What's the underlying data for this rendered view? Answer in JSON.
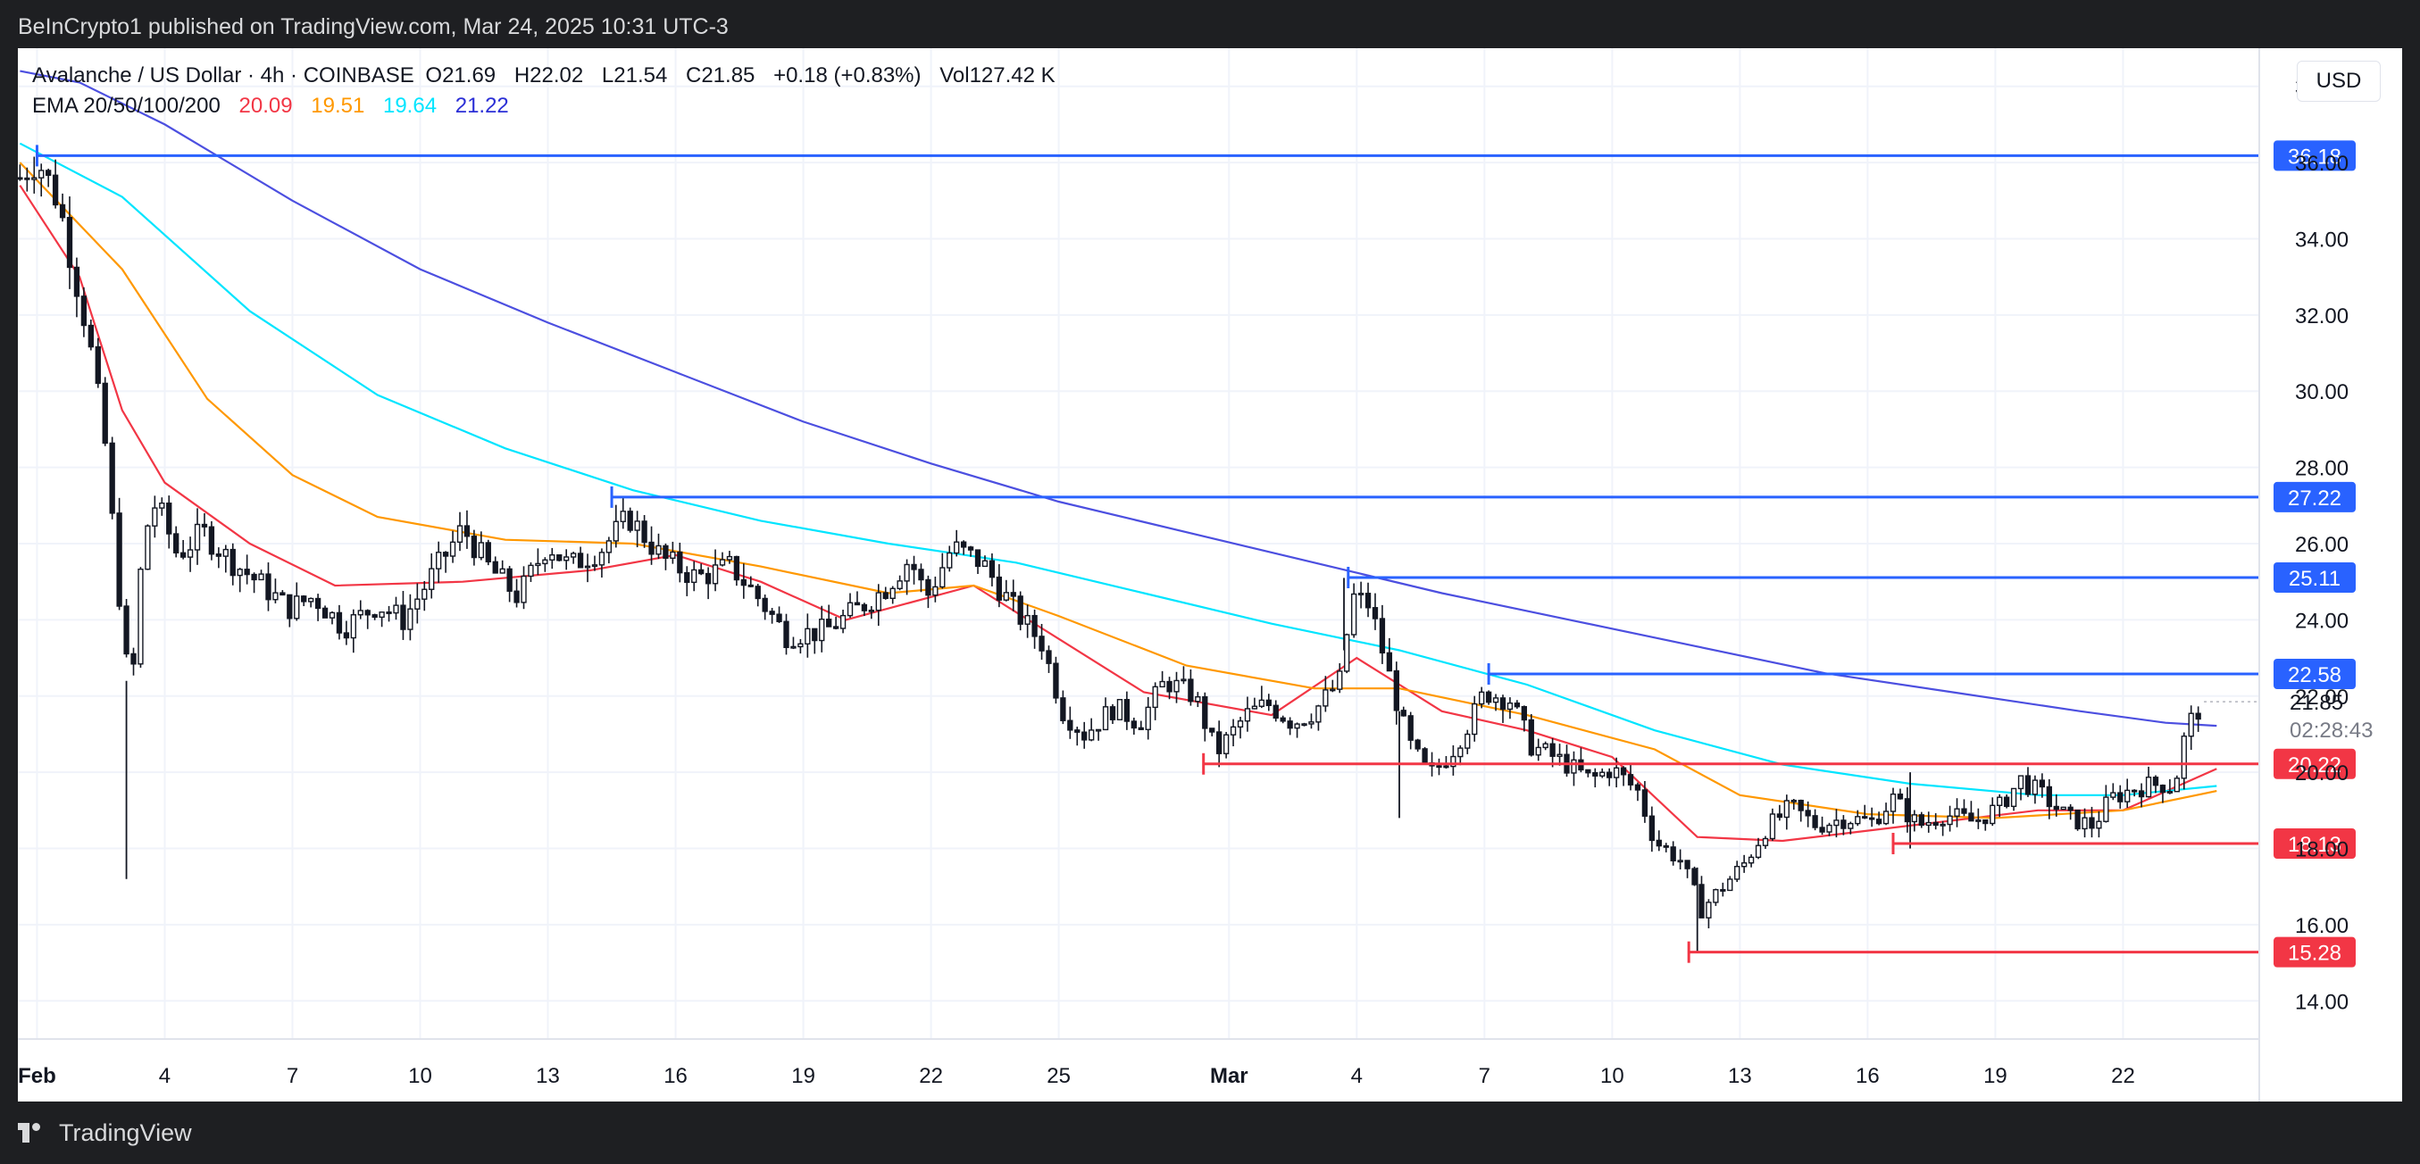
{
  "header": {
    "publisher": "BeInCrypto1 published on TradingView.com, Mar 24, 2025 10:31 UTC-3"
  },
  "legend": {
    "symbol": "Avalanche / US Dollar · 4h · COINBASE",
    "open_label": "O",
    "open": "21.69",
    "high_label": "H",
    "high": "22.02",
    "low_label": "L",
    "low": "21.54",
    "close_label": "C",
    "close": "21.85",
    "change": "+0.18 (+0.83%)",
    "volume_label": "Vol",
    "volume": "127.42 K",
    "ema_label": "EMA 20/50/100/200",
    "ema20": "20.09",
    "ema50": "19.51",
    "ema100": "19.64",
    "ema200": "21.22"
  },
  "currency": "USD",
  "footer": {
    "brand": "TradingView"
  },
  "colors": {
    "support": "#f23645",
    "resistance": "#2962ff",
    "ema20": "#f23645",
    "ema50": "#ff9800",
    "ema100": "#00e5ff",
    "ema200": "#4c4fe0",
    "candle": "#131722"
  },
  "chart_data": {
    "type": "candlestick",
    "interval": "4h",
    "y_axis": {
      "ticks": [
        "14.00",
        "16.00",
        "18.00",
        "20.00",
        "22.00",
        "24.00",
        "26.00",
        "28.00",
        "30.00",
        "32.00",
        "34.00",
        "36.00",
        "38.00"
      ],
      "ylim": [
        13.0,
        39.0
      ]
    },
    "x_axis": {
      "ticks": [
        {
          "label": "Feb",
          "day": 1,
          "bold": true
        },
        {
          "label": "4",
          "day": 4
        },
        {
          "label": "7",
          "day": 7
        },
        {
          "label": "10",
          "day": 10
        },
        {
          "label": "13",
          "day": 13
        },
        {
          "label": "16",
          "day": 16
        },
        {
          "label": "19",
          "day": 19
        },
        {
          "label": "22",
          "day": 22
        },
        {
          "label": "25",
          "day": 25
        },
        {
          "label": "Mar",
          "day": 29,
          "bold": true
        },
        {
          "label": "4",
          "day": 32
        },
        {
          "label": "7",
          "day": 35
        },
        {
          "label": "10",
          "day": 38
        },
        {
          "label": "13",
          "day": 41
        },
        {
          "label": "16",
          "day": 44
        },
        {
          "label": "19",
          "day": 47
        },
        {
          "label": "22",
          "day": 50
        }
      ],
      "xlim": [
        0.55,
        53.2
      ]
    },
    "last_price": "21.85",
    "countdown": "02:28:43",
    "ema200_value": 21.22,
    "key_points": [
      [
        0.6,
        35.6
      ],
      [
        1.0,
        36.1
      ],
      [
        1.5,
        35.0
      ],
      [
        2.2,
        31.5
      ],
      [
        2.6,
        28.6
      ],
      [
        2.9,
        25.0
      ],
      [
        3.2,
        21.8
      ],
      [
        3.5,
        26.2
      ],
      [
        3.8,
        27.1
      ],
      [
        4.3,
        25.7
      ],
      [
        4.9,
        26.3
      ],
      [
        5.5,
        25.6
      ],
      [
        6.3,
        24.9
      ],
      [
        6.9,
        24.3
      ],
      [
        7.5,
        24.6
      ],
      [
        8.2,
        23.8
      ],
      [
        9.0,
        24.4
      ],
      [
        9.6,
        24.0
      ],
      [
        10.3,
        25.2
      ],
      [
        11.0,
        26.4
      ],
      [
        11.6,
        25.4
      ],
      [
        12.3,
        24.6
      ],
      [
        13.0,
        26.0
      ],
      [
        13.5,
        25.4
      ],
      [
        14.3,
        25.9
      ],
      [
        14.9,
        26.7
      ],
      [
        15.7,
        25.6
      ],
      [
        16.5,
        25.1
      ],
      [
        17.3,
        25.4
      ],
      [
        18.0,
        24.5
      ],
      [
        18.6,
        23.6
      ],
      [
        19.5,
        23.7
      ],
      [
        20.3,
        24.3
      ],
      [
        20.9,
        24.8
      ],
      [
        21.5,
        25.6
      ],
      [
        21.9,
        24.6
      ],
      [
        22.5,
        25.9
      ],
      [
        23.2,
        25.5
      ],
      [
        24.0,
        24.2
      ],
      [
        24.6,
        23.4
      ],
      [
        25.1,
        21.6
      ],
      [
        25.6,
        21.0
      ],
      [
        26.3,
        21.7
      ],
      [
        26.9,
        21.3
      ],
      [
        27.5,
        22.4
      ],
      [
        28.2,
        22.0
      ],
      [
        28.7,
        20.5
      ],
      [
        29.4,
        21.5
      ],
      [
        29.9,
        21.8
      ],
      [
        30.5,
        21.3
      ],
      [
        31.0,
        21.6
      ],
      [
        31.6,
        22.4
      ],
      [
        31.9,
        24.6
      ],
      [
        32.3,
        24.4
      ],
      [
        32.7,
        22.8
      ],
      [
        33.2,
        20.8
      ],
      [
        33.7,
        19.9
      ],
      [
        34.2,
        20.5
      ],
      [
        34.7,
        21.4
      ],
      [
        35.0,
        22.1
      ],
      [
        35.6,
        21.9
      ],
      [
        36.1,
        20.7
      ],
      [
        36.8,
        20.3
      ],
      [
        37.5,
        19.8
      ],
      [
        38.0,
        20.1
      ],
      [
        38.6,
        19.5
      ],
      [
        39.0,
        18.2
      ],
      [
        39.6,
        17.7
      ],
      [
        40.1,
        16.4
      ],
      [
        40.6,
        17.0
      ],
      [
        41.1,
        17.6
      ],
      [
        41.6,
        18.5
      ],
      [
        42.2,
        19.1
      ],
      [
        42.8,
        18.6
      ],
      [
        43.5,
        18.8
      ],
      [
        44.1,
        18.7
      ],
      [
        44.6,
        19.3
      ],
      [
        45.2,
        18.6
      ],
      [
        45.8,
        18.9
      ],
      [
        46.5,
        18.7
      ],
      [
        47.1,
        19.1
      ],
      [
        47.6,
        19.8
      ],
      [
        48.1,
        19.4
      ],
      [
        48.7,
        18.8
      ],
      [
        49.3,
        18.6
      ],
      [
        49.7,
        19.3
      ],
      [
        50.3,
        19.6
      ],
      [
        50.9,
        19.7
      ],
      [
        51.2,
        19.6
      ],
      [
        51.5,
        21.2
      ],
      [
        51.9,
        21.85
      ]
    ],
    "spikes": [
      {
        "day": 3.1,
        "low": 17.2,
        "high": 22.4
      },
      {
        "day": 31.7,
        "low": 23.2,
        "high": 25.1
      },
      {
        "day": 33.0,
        "low": 18.8,
        "high": 21.6
      },
      {
        "day": 40.0,
        "low": 15.3,
        "high": 17.5
      },
      {
        "day": 45.0,
        "low": 18.0,
        "high": 20.0
      }
    ],
    "levels": [
      {
        "value": 36.18,
        "label": "36.18",
        "kind": "resistance",
        "start_day": 1.0
      },
      {
        "value": 27.22,
        "label": "27.22",
        "kind": "resistance",
        "start_day": 14.5
      },
      {
        "value": 25.11,
        "label": "25.11",
        "kind": "resistance",
        "start_day": 31.8
      },
      {
        "value": 22.58,
        "label": "22.58",
        "kind": "resistance",
        "start_day": 35.1
      },
      {
        "value": 20.22,
        "label": "20.22",
        "kind": "support",
        "start_day": 28.4
      },
      {
        "value": 18.13,
        "label": "18.13",
        "kind": "support",
        "start_day": 44.6
      },
      {
        "value": 15.28,
        "label": "15.28",
        "kind": "support",
        "start_day": 39.8
      }
    ],
    "ema": [
      {
        "name": "EMA 20",
        "key": "ema20",
        "points": [
          [
            0.6,
            35.4
          ],
          [
            2.0,
            33.0
          ],
          [
            3.0,
            29.5
          ],
          [
            4.0,
            27.6
          ],
          [
            6.0,
            26.0
          ],
          [
            8.0,
            24.9
          ],
          [
            11.0,
            25.0
          ],
          [
            14.0,
            25.3
          ],
          [
            16.0,
            25.7
          ],
          [
            18.0,
            25.0
          ],
          [
            20.0,
            24.0
          ],
          [
            23.0,
            24.9
          ],
          [
            25.0,
            23.5
          ],
          [
            27.0,
            22.1
          ],
          [
            30.0,
            21.5
          ],
          [
            32.0,
            23.0
          ],
          [
            34.0,
            21.6
          ],
          [
            36.0,
            21.1
          ],
          [
            38.0,
            20.4
          ],
          [
            40.0,
            18.3
          ],
          [
            42.0,
            18.2
          ],
          [
            45.0,
            18.6
          ],
          [
            48.0,
            19.0
          ],
          [
            50.0,
            19.0
          ],
          [
            52.2,
            20.09
          ]
        ]
      },
      {
        "name": "EMA 50",
        "key": "ema50",
        "points": [
          [
            0.6,
            36.0
          ],
          [
            3.0,
            33.2
          ],
          [
            5.0,
            29.8
          ],
          [
            7.0,
            27.8
          ],
          [
            9.0,
            26.7
          ],
          [
            12.0,
            26.1
          ],
          [
            15.0,
            26.0
          ],
          [
            18.0,
            25.4
          ],
          [
            21.0,
            24.7
          ],
          [
            23.0,
            24.9
          ],
          [
            25.0,
            24.1
          ],
          [
            28.0,
            22.8
          ],
          [
            31.0,
            22.2
          ],
          [
            33.0,
            22.2
          ],
          [
            36.0,
            21.5
          ],
          [
            39.0,
            20.6
          ],
          [
            41.0,
            19.4
          ],
          [
            44.0,
            18.9
          ],
          [
            47.0,
            18.8
          ],
          [
            50.0,
            19.0
          ],
          [
            52.2,
            19.51
          ]
        ]
      },
      {
        "name": "EMA 100",
        "key": "ema100",
        "points": [
          [
            0.6,
            36.5
          ],
          [
            3.0,
            35.1
          ],
          [
            6.0,
            32.1
          ],
          [
            9.0,
            29.9
          ],
          [
            12.0,
            28.5
          ],
          [
            15.0,
            27.4
          ],
          [
            18.0,
            26.6
          ],
          [
            21.0,
            26.0
          ],
          [
            24.0,
            25.5
          ],
          [
            27.0,
            24.7
          ],
          [
            30.0,
            23.9
          ],
          [
            33.0,
            23.2
          ],
          [
            36.0,
            22.3
          ],
          [
            39.0,
            21.1
          ],
          [
            42.0,
            20.2
          ],
          [
            45.0,
            19.7
          ],
          [
            48.0,
            19.4
          ],
          [
            50.0,
            19.4
          ],
          [
            52.2,
            19.64
          ]
        ]
      },
      {
        "name": "EMA 200",
        "key": "ema200",
        "points": [
          [
            0.6,
            38.4
          ],
          [
            2.0,
            38.1
          ],
          [
            4.0,
            37.0
          ],
          [
            7.0,
            35.0
          ],
          [
            10.0,
            33.2
          ],
          [
            13.0,
            31.8
          ],
          [
            16.0,
            30.5
          ],
          [
            19.0,
            29.2
          ],
          [
            22.0,
            28.1
          ],
          [
            25.0,
            27.1
          ],
          [
            28.0,
            26.3
          ],
          [
            31.0,
            25.5
          ],
          [
            34.0,
            24.7
          ],
          [
            37.0,
            24.0
          ],
          [
            40.0,
            23.3
          ],
          [
            43.0,
            22.6
          ],
          [
            46.0,
            22.1
          ],
          [
            49.0,
            21.6
          ],
          [
            51.0,
            21.3
          ],
          [
            52.2,
            21.22
          ]
        ]
      }
    ]
  }
}
